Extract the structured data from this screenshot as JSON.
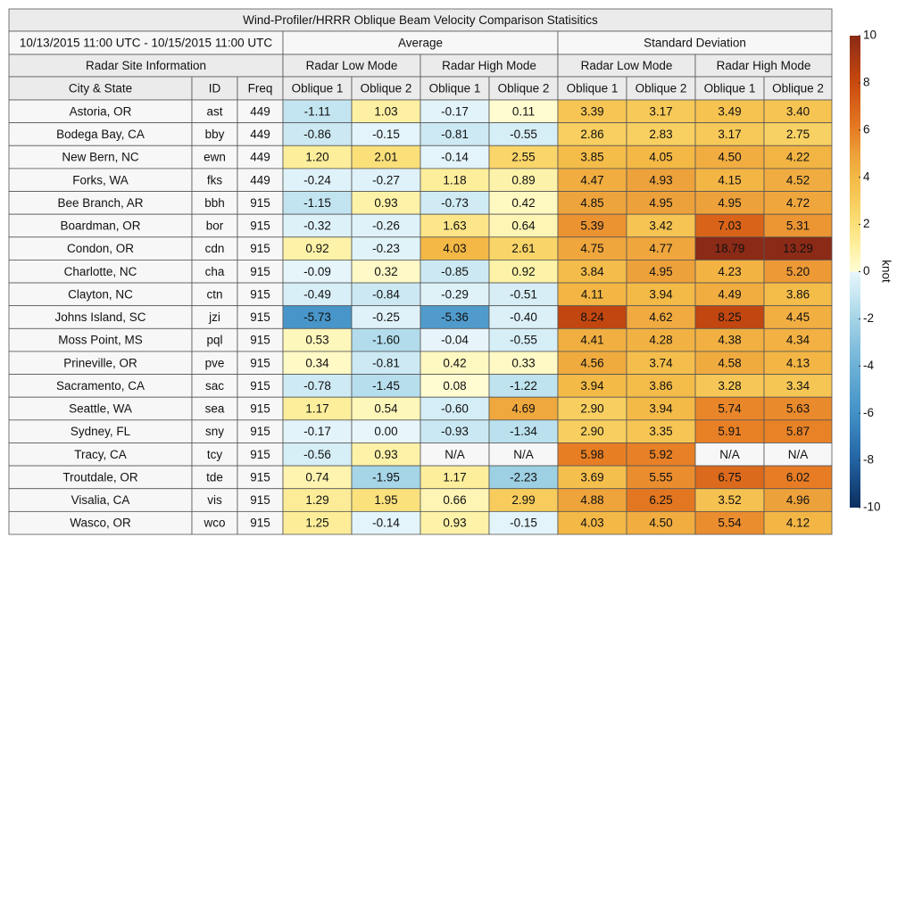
{
  "title": "Wind-Profiler/HRRR Oblique Beam Velocity Comparison Statisitics",
  "date_range": "10/13/2015 11:00 UTC - 10/15/2015 11:00 UTC",
  "header": {
    "groups": [
      "Average",
      "Standard Deviation"
    ],
    "site_info": "Radar Site Information",
    "modes": [
      "Radar Low Mode",
      "Radar High Mode",
      "Radar Low Mode",
      "Radar High Mode"
    ],
    "columns": [
      "City & State",
      "ID",
      "Freq",
      "Oblique 1",
      "Oblique 2",
      "Oblique 1",
      "Oblique 2",
      "Oblique 1",
      "Oblique 2",
      "Oblique 1",
      "Oblique 2"
    ]
  },
  "rows": [
    [
      "Astoria, OR",
      "ast",
      "449",
      "-1.11",
      "1.03",
      "-0.17",
      "0.11",
      "3.39",
      "3.17",
      "3.49",
      "3.40"
    ],
    [
      "Bodega Bay, CA",
      "bby",
      "449",
      "-0.86",
      "-0.15",
      "-0.81",
      "-0.55",
      "2.86",
      "2.83",
      "3.17",
      "2.75"
    ],
    [
      "New Bern, NC",
      "ewn",
      "449",
      "1.20",
      "2.01",
      "-0.14",
      "2.55",
      "3.85",
      "4.05",
      "4.50",
      "4.22"
    ],
    [
      "Forks, WA",
      "fks",
      "449",
      "-0.24",
      "-0.27",
      "1.18",
      "0.89",
      "4.47",
      "4.93",
      "4.15",
      "4.52"
    ],
    [
      "Bee Branch, AR",
      "bbh",
      "915",
      "-1.15",
      "0.93",
      "-0.73",
      "0.42",
      "4.85",
      "4.95",
      "4.95",
      "4.72"
    ],
    [
      "Boardman, OR",
      "bor",
      "915",
      "-0.32",
      "-0.26",
      "1.63",
      "0.64",
      "5.39",
      "3.42",
      "7.03",
      "5.31"
    ],
    [
      "Condon, OR",
      "cdn",
      "915",
      "0.92",
      "-0.23",
      "4.03",
      "2.61",
      "4.75",
      "4.77",
      "18.79",
      "13.29"
    ],
    [
      "Charlotte, NC",
      "cha",
      "915",
      "-0.09",
      "0.32",
      "-0.85",
      "0.92",
      "3.84",
      "4.95",
      "4.23",
      "5.20"
    ],
    [
      "Clayton, NC",
      "ctn",
      "915",
      "-0.49",
      "-0.84",
      "-0.29",
      "-0.51",
      "4.11",
      "3.94",
      "4.49",
      "3.86"
    ],
    [
      "Johns Island, SC",
      "jzi",
      "915",
      "-5.73",
      "-0.25",
      "-5.36",
      "-0.40",
      "8.24",
      "4.62",
      "8.25",
      "4.45"
    ],
    [
      "Moss Point, MS",
      "pql",
      "915",
      "0.53",
      "-1.60",
      "-0.04",
      "-0.55",
      "4.41",
      "4.28",
      "4.38",
      "4.34"
    ],
    [
      "Prineville, OR",
      "pve",
      "915",
      "0.34",
      "-0.81",
      "0.42",
      "0.33",
      "4.56",
      "3.74",
      "4.58",
      "4.13"
    ],
    [
      "Sacramento, CA",
      "sac",
      "915",
      "-0.78",
      "-1.45",
      "0.08",
      "-1.22",
      "3.94",
      "3.86",
      "3.28",
      "3.34"
    ],
    [
      "Seattle, WA",
      "sea",
      "915",
      "1.17",
      "0.54",
      "-0.60",
      "4.69",
      "2.90",
      "3.94",
      "5.74",
      "5.63"
    ],
    [
      "Sydney, FL",
      "sny",
      "915",
      "-0.17",
      "0.00",
      "-0.93",
      "-1.34",
      "2.90",
      "3.35",
      "5.91",
      "5.87"
    ],
    [
      "Tracy, CA",
      "tcy",
      "915",
      "-0.56",
      "0.93",
      "N/A",
      "N/A",
      "5.98",
      "5.92",
      "N/A",
      "N/A"
    ],
    [
      "Troutdale, OR",
      "tde",
      "915",
      "0.74",
      "-1.95",
      "1.17",
      "-2.23",
      "3.69",
      "5.55",
      "6.75",
      "6.02"
    ],
    [
      "Visalia, CA",
      "vis",
      "915",
      "1.29",
      "1.95",
      "0.66",
      "2.99",
      "4.88",
      "6.25",
      "3.52",
      "4.96"
    ],
    [
      "Wasco, OR",
      "wco",
      "915",
      "1.25",
      "-0.14",
      "0.93",
      "-0.15",
      "4.03",
      "4.50",
      "5.54",
      "4.12"
    ]
  ],
  "colorbar": {
    "label": "knot",
    "ticks": [
      10,
      8,
      6,
      4,
      2,
      0,
      -2,
      -4,
      -6,
      -8,
      -10
    ]
  }
}
